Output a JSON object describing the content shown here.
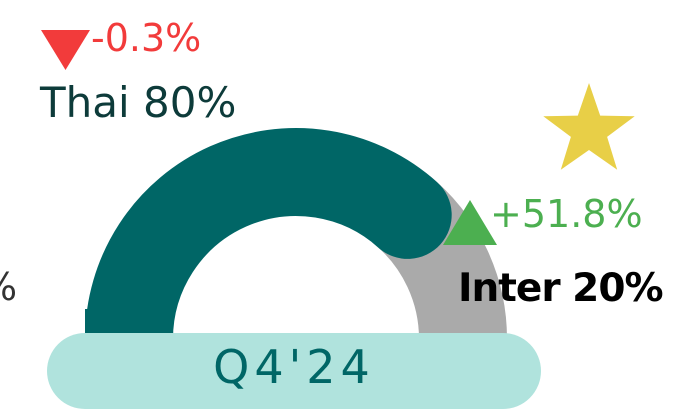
{
  "chart_data": {
    "type": "donut-gauge",
    "period_label": "Q4'24",
    "series": [
      {
        "name": "Thai",
        "share": 80,
        "share_label": "Thai 80%",
        "change_label": "-0.3%",
        "direction": "down"
      },
      {
        "name": "Inter",
        "share": 20,
        "share_label": "Inter 20%",
        "change_label": "+51.8%",
        "direction": "up"
      }
    ],
    "cut_off_label_left": "%",
    "highlight_icon": "star-icon"
  },
  "colors": {
    "thai_segment": "#006666",
    "inter_segment": "#aaaaaa",
    "period_pill": "#b0e3dd",
    "period_text": "#006666",
    "down": "#f23b3b",
    "up": "#4caf50",
    "star": "#e8cf47",
    "thai_label": "#0d3b3a",
    "inter_label": "#000000"
  }
}
